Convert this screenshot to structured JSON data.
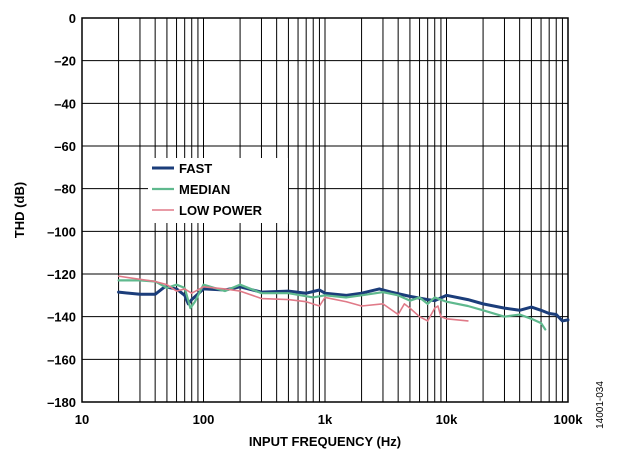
{
  "chart_data": {
    "type": "line",
    "xlabel": "INPUT FREQUENCY (Hz)",
    "ylabel": "THD (dB)",
    "x_scale": "log",
    "xlim": [
      10,
      100000
    ],
    "ylim": [
      -180,
      0
    ],
    "x_ticks": [
      10,
      100,
      1000,
      10000,
      100000
    ],
    "x_tick_labels": [
      "10",
      "100",
      "1k",
      "10k",
      "100k"
    ],
    "y_ticks": [
      0,
      -20,
      -40,
      -60,
      -80,
      -100,
      -120,
      -140,
      -160,
      -180
    ],
    "y_tick_labels": [
      "0",
      "–20",
      "–40",
      "–60",
      "–80",
      "–100",
      "–120",
      "–140",
      "–160",
      "–180"
    ],
    "grid": true,
    "legend_position": "left",
    "figure_id": "14001-034",
    "series": [
      {
        "name": "FAST",
        "color": "#1b3d7a",
        "points": [
          [
            20,
            -128.5
          ],
          [
            30,
            -129.5
          ],
          [
            40,
            -129.5
          ],
          [
            48,
            -126
          ],
          [
            60,
            -127
          ],
          [
            70,
            -130
          ],
          [
            75,
            -134
          ],
          [
            80,
            -132
          ],
          [
            100,
            -127
          ],
          [
            150,
            -127.5
          ],
          [
            200,
            -126
          ],
          [
            300,
            -128.5
          ],
          [
            500,
            -128
          ],
          [
            700,
            -129
          ],
          [
            900,
            -127.5
          ],
          [
            1000,
            -129
          ],
          [
            1500,
            -130
          ],
          [
            2000,
            -129
          ],
          [
            2800,
            -127
          ],
          [
            3500,
            -128.5
          ],
          [
            5000,
            -130.5
          ],
          [
            7000,
            -132
          ],
          [
            8000,
            -132.5
          ],
          [
            10000,
            -130
          ],
          [
            15000,
            -132
          ],
          [
            20000,
            -134
          ],
          [
            30000,
            -136
          ],
          [
            40000,
            -137
          ],
          [
            50000,
            -135.5
          ],
          [
            60000,
            -137
          ],
          [
            70000,
            -138.5
          ],
          [
            80000,
            -139
          ],
          [
            90000,
            -142
          ],
          [
            100000,
            -141.5
          ]
        ]
      },
      {
        "name": "MEDIAN",
        "color": "#5fb98e",
        "points": [
          [
            20,
            -123
          ],
          [
            30,
            -123
          ],
          [
            40,
            -123.5
          ],
          [
            50,
            -126.5
          ],
          [
            60,
            -125
          ],
          [
            70,
            -126.5
          ],
          [
            78,
            -136
          ],
          [
            85,
            -133
          ],
          [
            100,
            -125
          ],
          [
            150,
            -128
          ],
          [
            200,
            -125
          ],
          [
            300,
            -129
          ],
          [
            500,
            -129
          ],
          [
            800,
            -131
          ],
          [
            1000,
            -130
          ],
          [
            1500,
            -131
          ],
          [
            2000,
            -130
          ],
          [
            3000,
            -128.5
          ],
          [
            4000,
            -130
          ],
          [
            5000,
            -132.5
          ],
          [
            6000,
            -131
          ],
          [
            7000,
            -134
          ],
          [
            8000,
            -131
          ],
          [
            10000,
            -133
          ],
          [
            15000,
            -135
          ],
          [
            20000,
            -137
          ],
          [
            30000,
            -140
          ],
          [
            40000,
            -139
          ],
          [
            50000,
            -141
          ],
          [
            60000,
            -143
          ],
          [
            65000,
            -146
          ]
        ]
      },
      {
        "name": "LOW POWER",
        "color": "#e07a88",
        "points": [
          [
            20,
            -121
          ],
          [
            30,
            -122.5
          ],
          [
            40,
            -123.5
          ],
          [
            50,
            -125
          ],
          [
            60,
            -128
          ],
          [
            70,
            -127
          ],
          [
            80,
            -129
          ],
          [
            100,
            -126
          ],
          [
            150,
            -127
          ],
          [
            200,
            -128
          ],
          [
            300,
            -131.5
          ],
          [
            500,
            -132
          ],
          [
            700,
            -133
          ],
          [
            900,
            -135
          ],
          [
            1000,
            -131
          ],
          [
            1500,
            -133
          ],
          [
            2000,
            -135
          ],
          [
            3000,
            -134
          ],
          [
            4000,
            -139
          ],
          [
            4500,
            -134
          ],
          [
            5000,
            -136
          ],
          [
            6000,
            -140
          ],
          [
            7000,
            -142
          ],
          [
            8000,
            -136
          ],
          [
            8500,
            -135
          ],
          [
            9000,
            -140
          ],
          [
            10000,
            -141
          ],
          [
            15000,
            -142
          ]
        ]
      }
    ]
  }
}
